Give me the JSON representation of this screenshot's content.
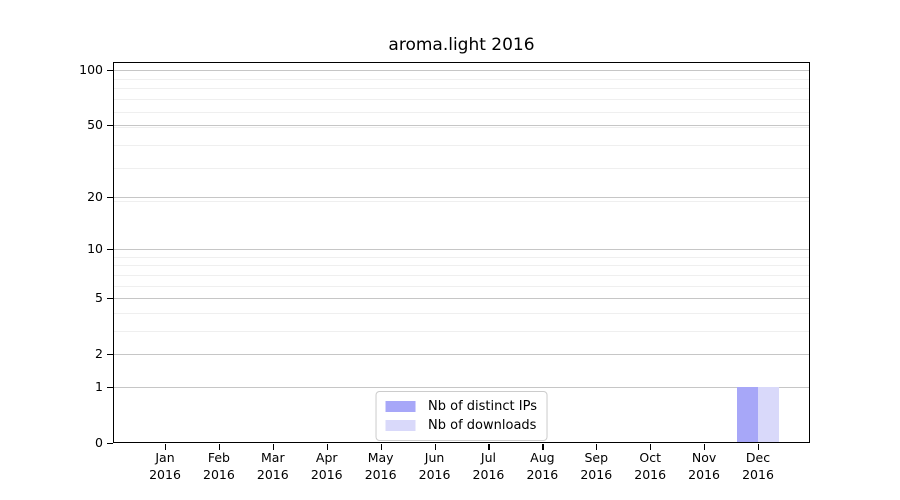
{
  "chart_data": {
    "type": "bar",
    "title": "aroma.light 2016",
    "categories": [
      "Jan",
      "Feb",
      "Mar",
      "Apr",
      "May",
      "Jun",
      "Jul",
      "Aug",
      "Sep",
      "Oct",
      "Nov",
      "Dec"
    ],
    "year_label": "2016",
    "series": [
      {
        "name": "Nb of distinct IPs",
        "color": "#a7a7f8",
        "values": [
          0,
          0,
          0,
          0,
          0,
          0,
          0,
          0,
          0,
          0,
          0,
          1
        ]
      },
      {
        "name": "Nb of downloads",
        "color": "#d9d9fa",
        "values": [
          0,
          0,
          0,
          0,
          0,
          0,
          0,
          0,
          0,
          0,
          0,
          1
        ]
      }
    ],
    "yscale": "log1p",
    "yticks": [
      0,
      1,
      2,
      5,
      10,
      20,
      50,
      100
    ],
    "minor_yticks": [
      3,
      4,
      6,
      7,
      8,
      9,
      19,
      29,
      39,
      49,
      59,
      69,
      79,
      89
    ],
    "ylim": [
      0,
      110
    ],
    "xlabel": "",
    "ylabel": "",
    "grid": "both",
    "legend_position": "lower center",
    "colors": {
      "major_grid": "#c6c6c6",
      "minor_grid": "#efefef",
      "axis": "#000000",
      "background": "#ffffff"
    }
  }
}
